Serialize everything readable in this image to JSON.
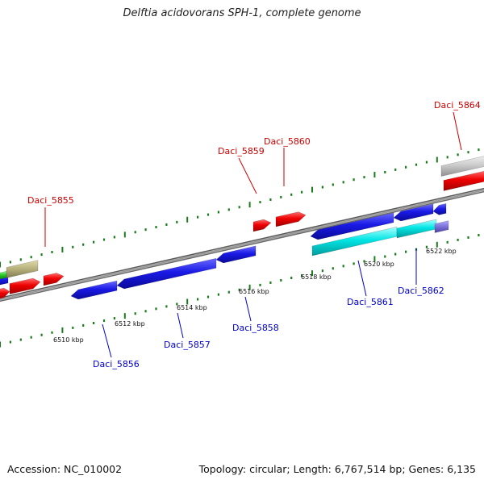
{
  "title": "Delftia acidovorans SPH-1, complete genome",
  "footer": {
    "accession": "Accession: NC_010002",
    "summary": "Topology: circular; Length: 6,767,514 bp; Genes: 6,135"
  },
  "colors": {
    "forward_label": "#cc0000",
    "reverse_label": "#0000cc",
    "forward_gene": "#ee0000",
    "reverse_gene": "#1a1ae6",
    "rna_gene": "#00e5e5",
    "other_gene": "#c0c0c0",
    "olive_gene": "#b5b07a",
    "backbone": "#7a7a7a",
    "ticks": "#1b7a1b"
  },
  "scale_labels": [
    "6510 kbp",
    "6512 kbp",
    "6514 kbp",
    "6516 kbp",
    "6518 kbp",
    "6520 kbp",
    "6522 kbp"
  ],
  "forward_labels": [
    "Daci_5855",
    "Daci_5859",
    "Daci_5860",
    "Daci_5864"
  ],
  "reverse_labels": [
    "Daci_5856",
    "Daci_5857",
    "Daci_5858",
    "Daci_5861",
    "Daci_5862"
  ]
}
